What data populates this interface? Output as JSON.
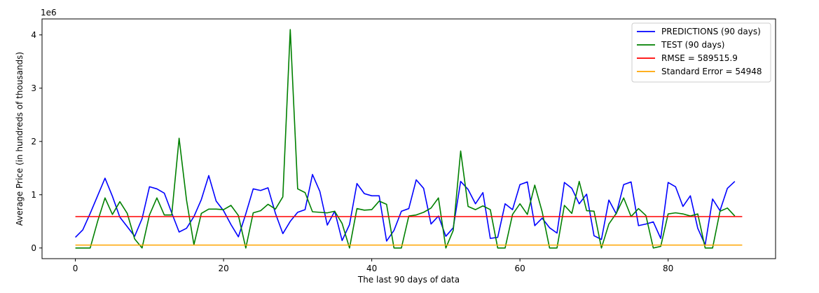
{
  "chart_data": {
    "type": "line",
    "title": "",
    "xlabel": "The last 90 days of data",
    "ylabel": "Average Price (in hundreds of thousands)",
    "y_offset_label": "1e6",
    "xlim": [
      -4.5,
      94.5
    ],
    "ylim": [
      -200000,
      4300000
    ],
    "x_ticks": [
      0,
      20,
      40,
      60,
      80
    ],
    "x_tick_labels": [
      "0",
      "20",
      "40",
      "60",
      "80"
    ],
    "y_ticks": [
      0,
      1000000,
      2000000,
      3000000,
      4000000
    ],
    "y_tick_labels": [
      "0",
      "1",
      "2",
      "3",
      "4"
    ],
    "grid": false,
    "legend_position": "top-right",
    "series": [
      {
        "name": "PREDICTIONS (90 days)",
        "color": "#0000ff",
        "x": [
          0,
          1,
          2,
          3,
          4,
          5,
          6,
          7,
          8,
          9,
          10,
          11,
          12,
          13,
          14,
          15,
          16,
          17,
          18,
          19,
          20,
          21,
          22,
          23,
          24,
          25,
          26,
          27,
          28,
          29,
          30,
          31,
          32,
          33,
          34,
          35,
          36,
          37,
          38,
          39,
          40,
          41,
          42,
          43,
          44,
          45,
          46,
          47,
          48,
          49,
          50,
          51,
          52,
          53,
          54,
          55,
          56,
          57,
          58,
          59,
          60,
          61,
          62,
          63,
          64,
          65,
          66,
          67,
          68,
          69,
          70,
          71,
          72,
          73,
          74,
          75,
          76,
          77,
          78,
          79,
          80,
          81,
          82,
          83,
          84,
          85,
          86,
          87,
          88,
          89
        ],
        "values": [
          200000,
          340000,
          650000,
          980000,
          1310000,
          970000,
          580000,
          400000,
          220000,
          550000,
          1150000,
          1110000,
          1030000,
          660000,
          300000,
          370000,
          590000,
          910000,
          1360000,
          880000,
          700000,
          440000,
          210000,
          640000,
          1110000,
          1080000,
          1130000,
          650000,
          270000,
          500000,
          670000,
          720000,
          1380000,
          1060000,
          430000,
          690000,
          140000,
          440000,
          1210000,
          1020000,
          980000,
          980000,
          130000,
          330000,
          690000,
          740000,
          1280000,
          1120000,
          450000,
          600000,
          220000,
          380000,
          1250000,
          1100000,
          830000,
          1040000,
          180000,
          200000,
          830000,
          720000,
          1190000,
          1240000,
          420000,
          560000,
          380000,
          280000,
          1230000,
          1120000,
          830000,
          1010000,
          230000,
          160000,
          900000,
          640000,
          1190000,
          1240000,
          420000,
          450000,
          490000,
          180000,
          1230000,
          1150000,
          780000,
          980000,
          370000,
          60000,
          920000,
          700000,
          1120000,
          1250000
        ]
      },
      {
        "name": "TEST (90 days)",
        "color": "#008000",
        "x": [
          0,
          1,
          2,
          3,
          4,
          5,
          6,
          7,
          8,
          9,
          10,
          11,
          12,
          13,
          14,
          15,
          16,
          17,
          18,
          19,
          20,
          21,
          22,
          23,
          24,
          25,
          26,
          27,
          28,
          29,
          30,
          31,
          32,
          33,
          34,
          35,
          36,
          37,
          38,
          39,
          40,
          41,
          42,
          43,
          44,
          45,
          46,
          47,
          48,
          49,
          50,
          51,
          52,
          53,
          54,
          55,
          56,
          57,
          58,
          59,
          60,
          61,
          62,
          63,
          64,
          65,
          66,
          67,
          68,
          69,
          70,
          71,
          72,
          73,
          74,
          75,
          76,
          77,
          78,
          79,
          80,
          81,
          82,
          83,
          84,
          85,
          86,
          87,
          88,
          89
        ],
        "values": [
          0,
          0,
          0,
          500000,
          940000,
          630000,
          870000,
          650000,
          170000,
          0,
          620000,
          940000,
          620000,
          620000,
          2060000,
          900000,
          60000,
          650000,
          730000,
          730000,
          720000,
          800000,
          610000,
          0,
          660000,
          700000,
          820000,
          730000,
          960000,
          4100000,
          1110000,
          1040000,
          680000,
          670000,
          660000,
          690000,
          460000,
          0,
          740000,
          710000,
          720000,
          880000,
          820000,
          0,
          0,
          600000,
          620000,
          670000,
          750000,
          940000,
          0,
          330000,
          1820000,
          780000,
          720000,
          790000,
          720000,
          0,
          0,
          630000,
          830000,
          630000,
          1180000,
          680000,
          0,
          0,
          800000,
          650000,
          1250000,
          700000,
          690000,
          0,
          450000,
          650000,
          940000,
          590000,
          740000,
          610000,
          0,
          30000,
          640000,
          660000,
          640000,
          600000,
          640000,
          0,
          0,
          690000,
          750000,
          600000
        ]
      },
      {
        "name": "RMSE = 589515.9",
        "color": "#ff0000",
        "x": [
          0,
          90
        ],
        "values": [
          589515.9,
          589515.9
        ]
      },
      {
        "name": "Standard Error = 54948",
        "color": "#ffa500",
        "x": [
          0,
          90
        ],
        "values": [
          54948,
          54948
        ]
      }
    ]
  }
}
